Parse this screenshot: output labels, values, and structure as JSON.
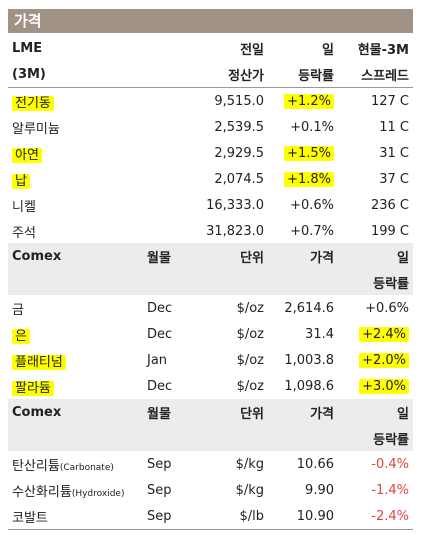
{
  "title": "가격",
  "lme": {
    "header": {
      "col1_line1": "LME",
      "col1_line2": "(3M)",
      "col2_line1": "전일",
      "col2_line2": "정산가",
      "col3_line1": "일",
      "col3_line2": "등락률",
      "col4_line1": "현물-3M",
      "col4_line2": "스프레드"
    },
    "rows": [
      {
        "name": "전기동",
        "price": "9,515.0",
        "change": "+1.2%",
        "spread": "127 C"
      },
      {
        "name": "알루미늄",
        "price": "2,539.5",
        "change": "+0.1%",
        "spread": "11 C"
      },
      {
        "name": "아연",
        "price": "2,929.5",
        "change": "+1.5%",
        "spread": "31 C"
      },
      {
        "name": "납",
        "price": "2,074.5",
        "change": "+1.8%",
        "spread": "37 C"
      },
      {
        "name": "니켈",
        "price": "16,333.0",
        "change": "+0.6%",
        "spread": "236 C"
      },
      {
        "name": "주석",
        "price": "31,823.0",
        "change": "+0.7%",
        "spread": "199 C"
      }
    ]
  },
  "comex": {
    "header": {
      "col1": "Comex",
      "col2": "월물",
      "col3": "단위",
      "col4": "가격",
      "col5_line1": "일",
      "col5_line2": "등락률"
    },
    "rows": [
      {
        "name": "금",
        "month": "Dec",
        "unit": "$/oz",
        "price": "2,614.6",
        "change": "+0.6%"
      },
      {
        "name": "은",
        "month": "Dec",
        "unit": "$/oz",
        "price": "31.4",
        "change": "+2.4%"
      },
      {
        "name": "플래티넘",
        "month": "Jan",
        "unit": "$/oz",
        "price": "1,003.8",
        "change": "+2.0%"
      },
      {
        "name": "팔라듐",
        "month": "Dec",
        "unit": "$/oz",
        "price": "1,098.6",
        "change": "+3.0%"
      }
    ]
  },
  "comex2": {
    "header": {
      "col1": "Comex",
      "col2": "월물",
      "col3": "단위",
      "col4": "가격",
      "col5_line1": "일",
      "col5_line2": "등락률"
    },
    "rows": [
      {
        "name": "탄산리튬",
        "sub": "(Carbonate)",
        "month": "Sep",
        "unit": "$/kg",
        "price": "10.66",
        "change": "-0.4%"
      },
      {
        "name": "수산화리튬",
        "sub": "(Hydroxide)",
        "month": "Sep",
        "unit": "$/kg",
        "price": "9.90",
        "change": "-1.4%"
      },
      {
        "name": "코발트",
        "sub": "",
        "month": "Sep",
        "unit": "$/lb",
        "price": "10.90",
        "change": "-2.4%"
      }
    ]
  }
}
